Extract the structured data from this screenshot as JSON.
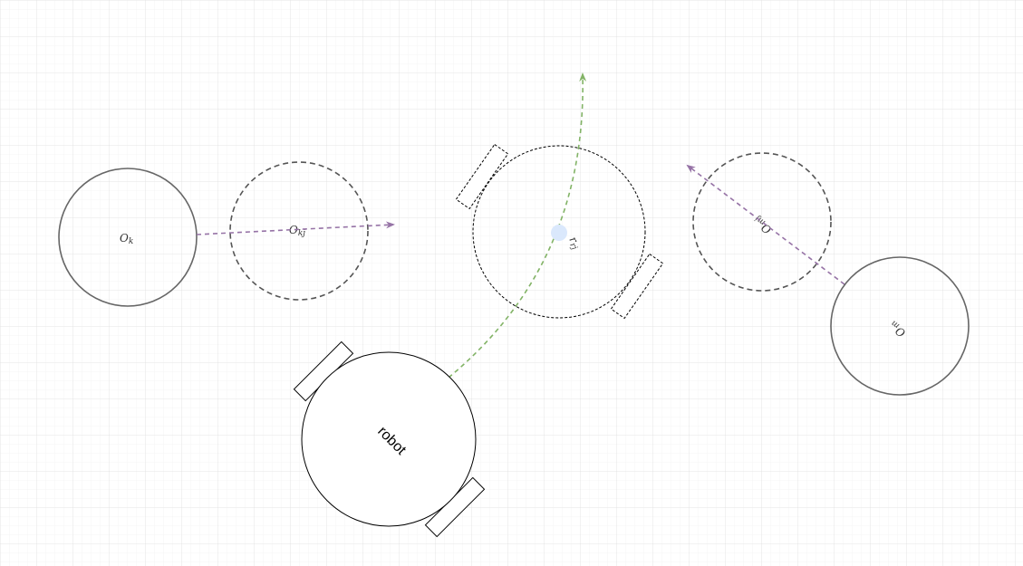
{
  "labels": {
    "obstacle_k": "O",
    "obstacle_k_sub": "k",
    "obstacle_kj": "O",
    "obstacle_kj_sub": "kj",
    "robot_future": "r",
    "robot_future_sub": "rj",
    "obstacle_mj": "O",
    "obstacle_mj_sub": "mj",
    "obstacle_m": "O",
    "obstacle_m_sub": "m",
    "robot": "robot"
  },
  "colors": {
    "grid": "#e8e8e8",
    "obstacle_stroke": "#666666",
    "robot_stroke": "#000000",
    "velocity_arrow": "#9673a6",
    "trajectory": "#82b366",
    "future_point": "#dae8fc"
  }
}
